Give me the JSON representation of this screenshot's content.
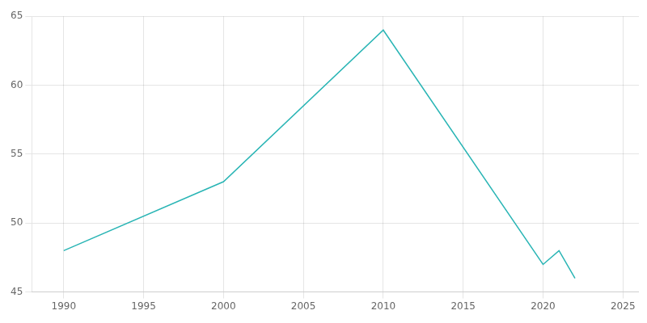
{
  "chart_data": {
    "type": "line",
    "x": [
      1990,
      2000,
      2010,
      2020,
      2021,
      2022
    ],
    "values": [
      48,
      53,
      64,
      47,
      48,
      46
    ],
    "color": "#2ab5b5",
    "xlim": [
      1988,
      2026
    ],
    "ylim": [
      45,
      65
    ],
    "xticks": [
      1990,
      1995,
      2000,
      2005,
      2010,
      2015,
      2020,
      2025
    ],
    "yticks": [
      45,
      50,
      55,
      60,
      65
    ],
    "grid": true
  }
}
